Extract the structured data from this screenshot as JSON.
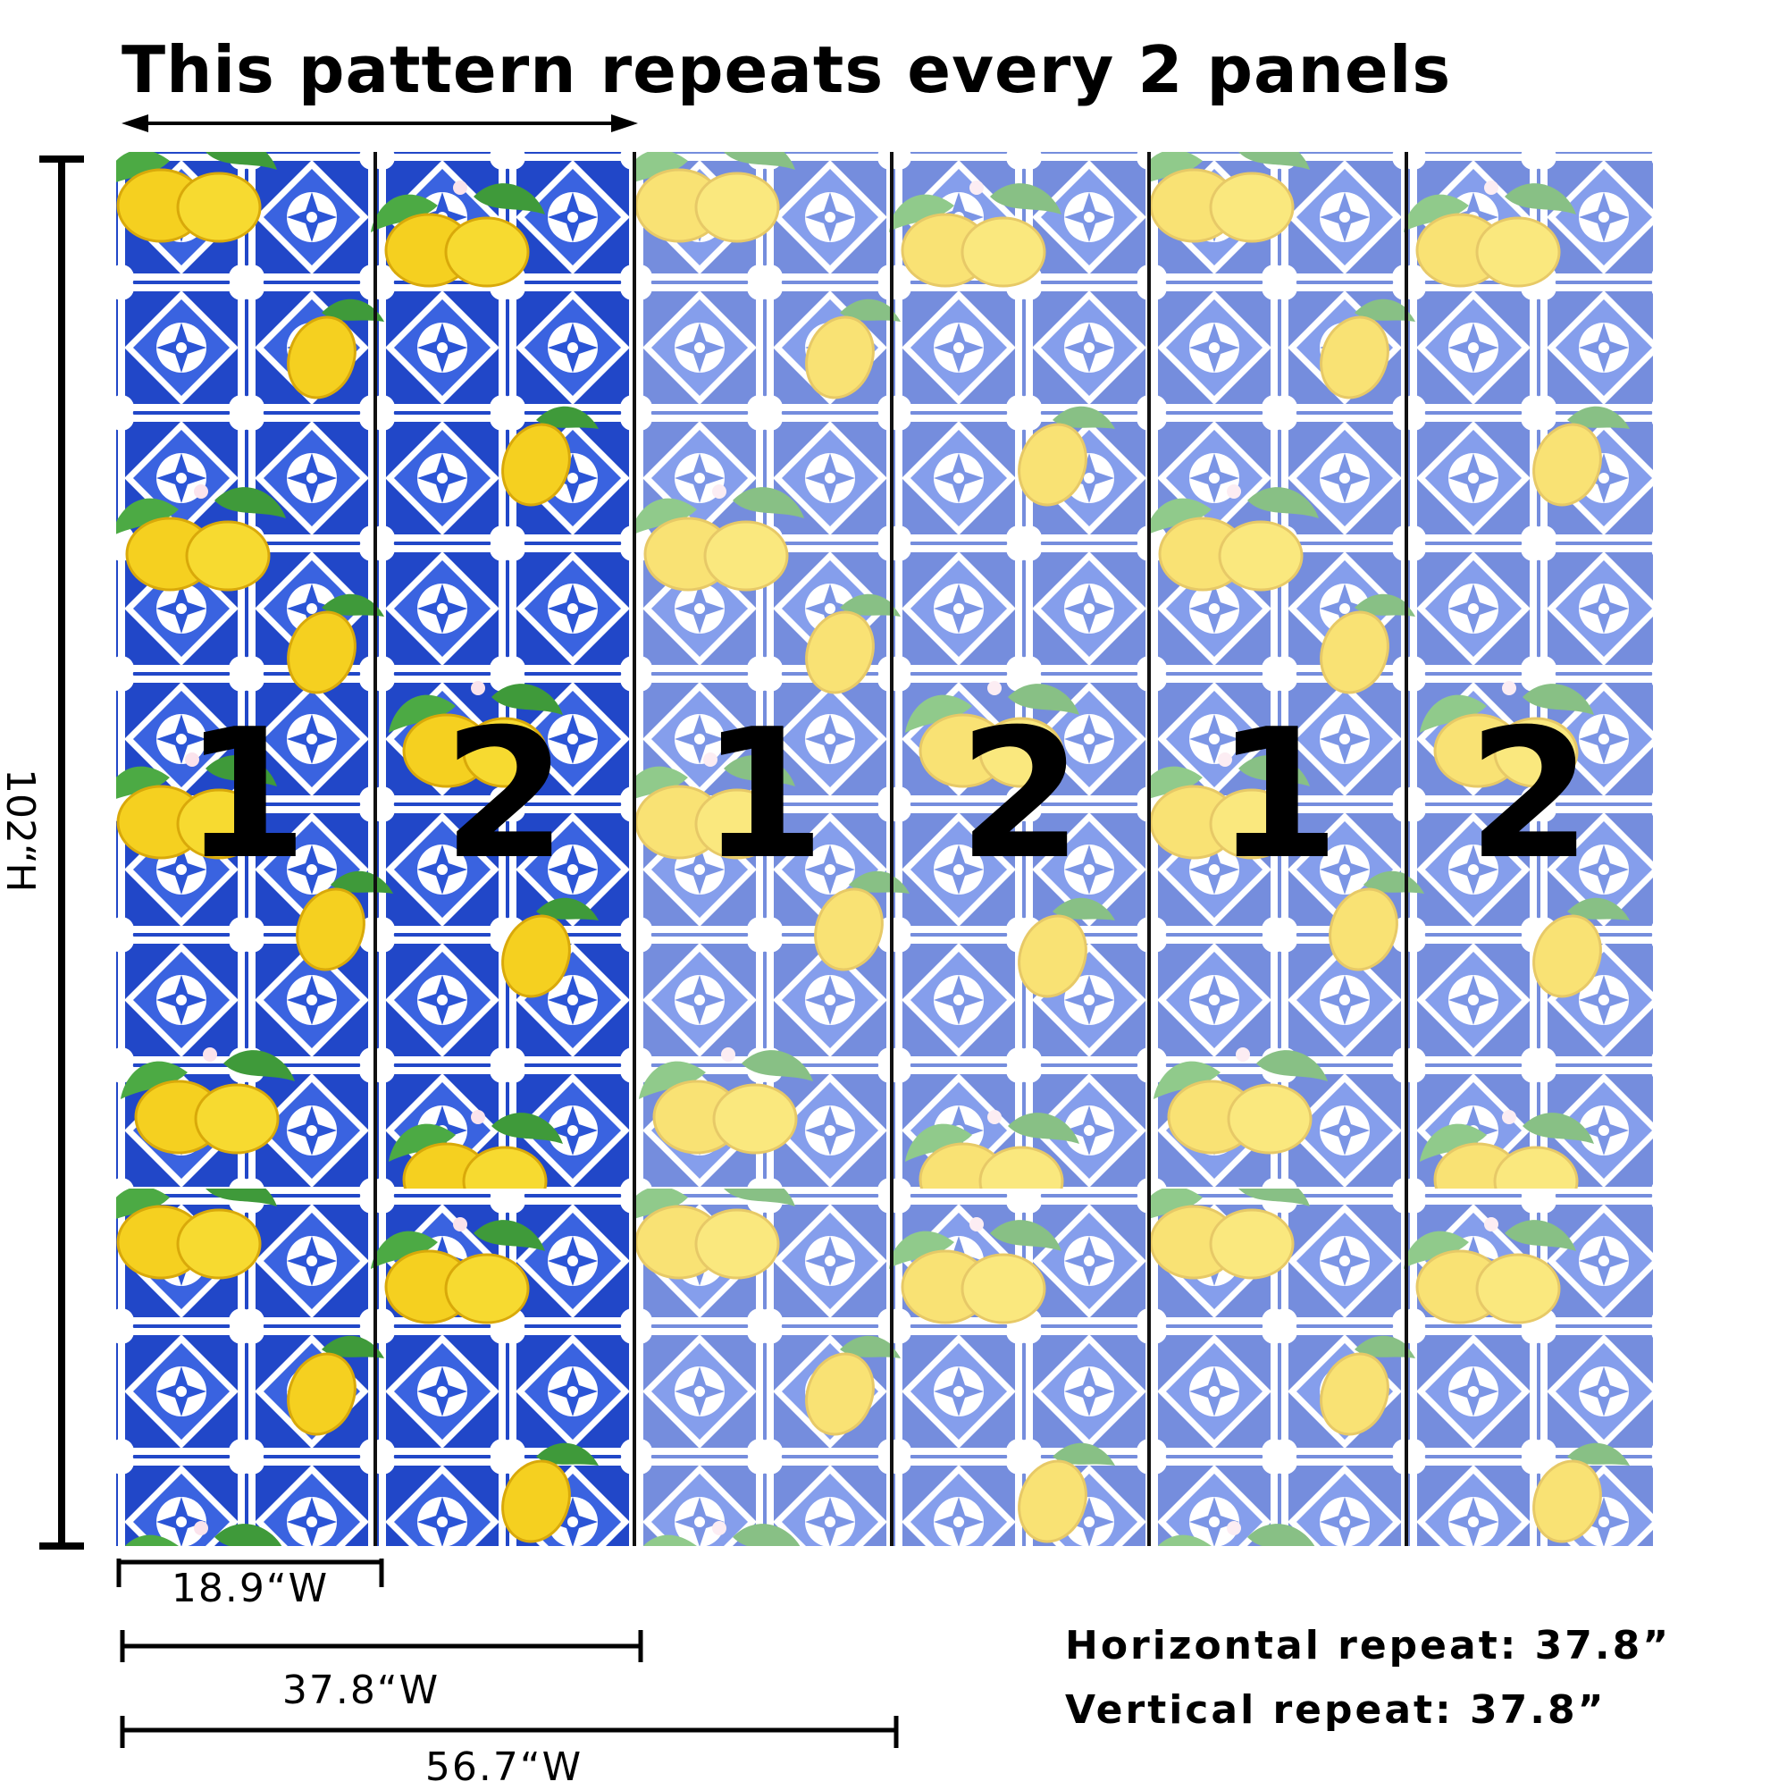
{
  "title": "This pattern repeats every 2 panels",
  "height_label": "102“H",
  "panels": [
    {
      "number": "1",
      "highlighted": true
    },
    {
      "number": "2",
      "highlighted": true
    },
    {
      "number": "1",
      "highlighted": false
    },
    {
      "number": "2",
      "highlighted": false
    },
    {
      "number": "1",
      "highlighted": false
    },
    {
      "number": "2",
      "highlighted": false
    }
  ],
  "dimensions": {
    "one_panel": "18.9“W",
    "two_panels": "37.8“W",
    "three_panels": "56.7“W"
  },
  "repeat": {
    "horizontal_label": "Horizontal repeat:",
    "horizontal_value": "37.8”",
    "vertical_label": "Vertical repeat:",
    "vertical_value": "37.8”"
  },
  "colors": {
    "tile_blue": "#2147c8",
    "tile_light": "#dfe7ff",
    "lemon": "#f5d020",
    "leaf": "#3f9a3a"
  }
}
